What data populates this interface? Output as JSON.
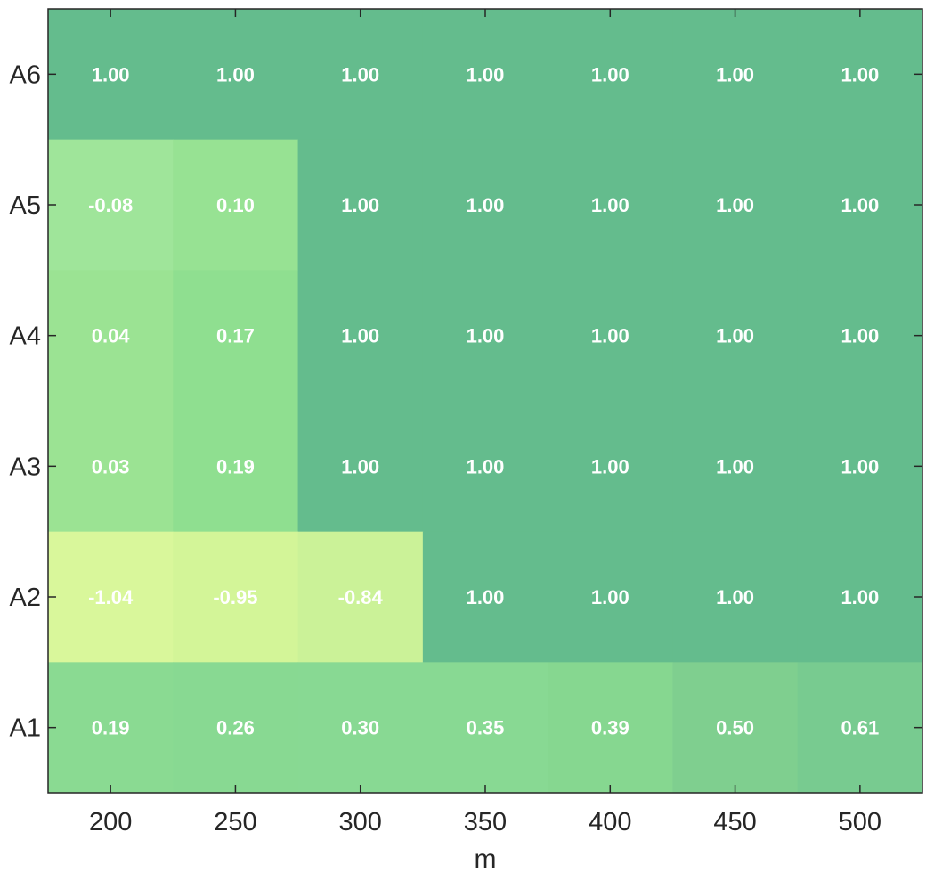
{
  "chart_data": {
    "type": "heatmap",
    "title": "",
    "xlabel": "m",
    "ylabel": "",
    "x": [
      "200",
      "250",
      "300",
      "350",
      "400",
      "450",
      "500"
    ],
    "y": [
      "A6",
      "A5",
      "A4",
      "A3",
      "A2",
      "A1"
    ],
    "values": [
      [
        "1.00",
        "1.00",
        "1.00",
        "1.00",
        "1.00",
        "1.00",
        "1.00"
      ],
      [
        "-0.08",
        "0.10",
        "1.00",
        "1.00",
        "1.00",
        "1.00",
        "1.00"
      ],
      [
        "0.04",
        "0.17",
        "1.00",
        "1.00",
        "1.00",
        "1.00",
        "1.00"
      ],
      [
        "0.03",
        "0.19",
        "1.00",
        "1.00",
        "1.00",
        "1.00",
        "1.00"
      ],
      [
        "-1.04",
        "-0.95",
        "-0.84",
        "1.00",
        "1.00",
        "1.00",
        "1.00"
      ],
      [
        "0.19",
        "0.26",
        "0.30",
        "0.35",
        "0.39",
        "0.50",
        "0.61"
      ]
    ],
    "colors": [
      [
        "#64bc8d",
        "#64bc8d",
        "#64bc8d",
        "#64bc8d",
        "#64bc8d",
        "#64bc8d",
        "#64bc8d"
      ],
      [
        "#9fe59a",
        "#97e293",
        "#64bc8d",
        "#64bc8d",
        "#64bc8d",
        "#64bc8d",
        "#64bc8d"
      ],
      [
        "#9be393",
        "#8fdf90",
        "#64bc8d",
        "#64bc8d",
        "#64bc8d",
        "#64bc8d",
        "#64bc8d"
      ],
      [
        "#9be393",
        "#8fdf90",
        "#64bc8d",
        "#64bc8d",
        "#64bc8d",
        "#64bc8d",
        "#64bc8d"
      ],
      [
        "#d9f79b",
        "#d3f598",
        "#cbf298",
        "#64bc8d",
        "#64bc8d",
        "#64bc8d",
        "#64bc8d"
      ],
      [
        "#8ada92",
        "#88d992",
        "#88d993",
        "#88d993",
        "#86d790",
        "#7fcf8f",
        "#78cb90"
      ]
    ],
    "grid": false,
    "colorbar": false
  }
}
